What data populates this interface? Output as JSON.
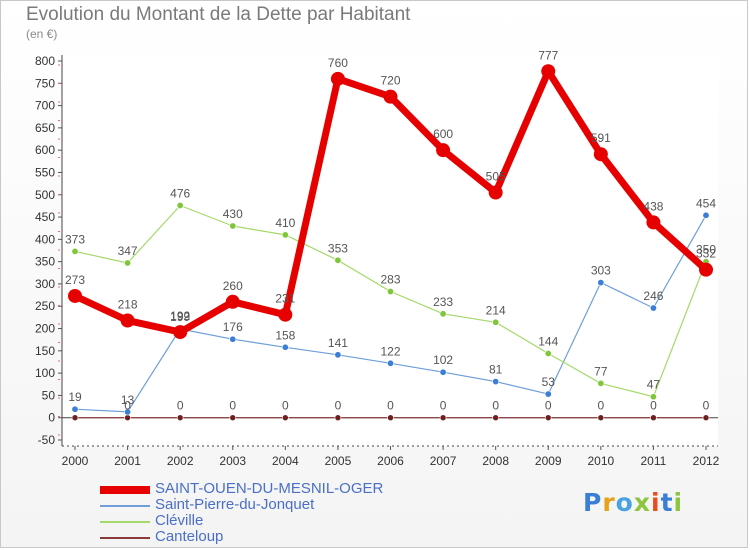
{
  "title": "Evolution du Montant de la Dette par Habitant",
  "subtitle": "(en €)",
  "logo": {
    "text": "Proxiti",
    "colors": [
      "#3a7fd5",
      "#e8a21a",
      "#4aa3df",
      "#8cc63f",
      "#e84e1b",
      "#3a7fd5",
      "#8cc63f"
    ]
  },
  "chart_data": {
    "type": "line",
    "title": "Evolution du Montant de la Dette par Habitant",
    "ylabel": "(en €)",
    "xlabel": "",
    "x": [
      "2000",
      "2001",
      "2002",
      "2003",
      "2004",
      "2005",
      "2006",
      "2007",
      "2008",
      "2009",
      "2010",
      "2011",
      "2012"
    ],
    "ylim": [
      -50,
      800
    ],
    "yticks": [
      "-50",
      "0",
      "50",
      "100",
      "150",
      "200",
      "250",
      "300",
      "350",
      "400",
      "450",
      "500",
      "550",
      "600",
      "650",
      "700",
      "750",
      "800"
    ],
    "grid": false,
    "legend_position": "bottom-left",
    "series": [
      {
        "name": "SAINT-OUEN-DU-MESNIL-OGER",
        "color": "#e60000",
        "width": 7,
        "marker_color": "#e60000",
        "marker_radius": 7,
        "values": [
          273,
          218,
          192,
          260,
          231,
          760,
          720,
          600,
          505,
          777,
          591,
          438,
          332
        ],
        "labels": [
          "273",
          "218",
          "192",
          "260",
          "231",
          "760",
          "720",
          "600",
          "505",
          "777",
          "591",
          "438",
          "332"
        ]
      },
      {
        "name": "Saint-Pierre-du-Jonquet",
        "color": "#6f9ed8",
        "width": 1.2,
        "marker_color": "#3a7fd5",
        "marker_radius": 3.2,
        "values": [
          19,
          13,
          199,
          176,
          158,
          141,
          122,
          102,
          81,
          53,
          303,
          246,
          454
        ],
        "labels": [
          "19",
          "13",
          "199",
          "176",
          "158",
          "141",
          "122",
          "102",
          "81",
          "53",
          "303",
          "246",
          "454"
        ]
      },
      {
        "name": "Cléville",
        "color": "#a5d96a",
        "width": 1.2,
        "marker_color": "#7fc63a",
        "marker_radius": 3.2,
        "values": [
          373,
          347,
          476,
          430,
          410,
          353,
          283,
          233,
          214,
          144,
          77,
          47,
          350
        ],
        "labels": [
          "373",
          "347",
          "476",
          "430",
          "410",
          "353",
          "283",
          "233",
          "214",
          "144",
          "77",
          "47",
          "350"
        ]
      },
      {
        "name": "Canteloup",
        "color": "#8b3a3a",
        "width": 1.2,
        "marker_color": "#6b1f1f",
        "marker_radius": 3,
        "values": [
          0,
          0,
          0,
          0,
          0,
          0,
          0,
          0,
          0,
          0,
          0,
          0,
          0
        ],
        "labels": [
          "",
          "0",
          "0",
          "0",
          "0",
          "0",
          "0",
          "0",
          "0",
          "0",
          "0",
          "0",
          "0"
        ]
      }
    ]
  }
}
